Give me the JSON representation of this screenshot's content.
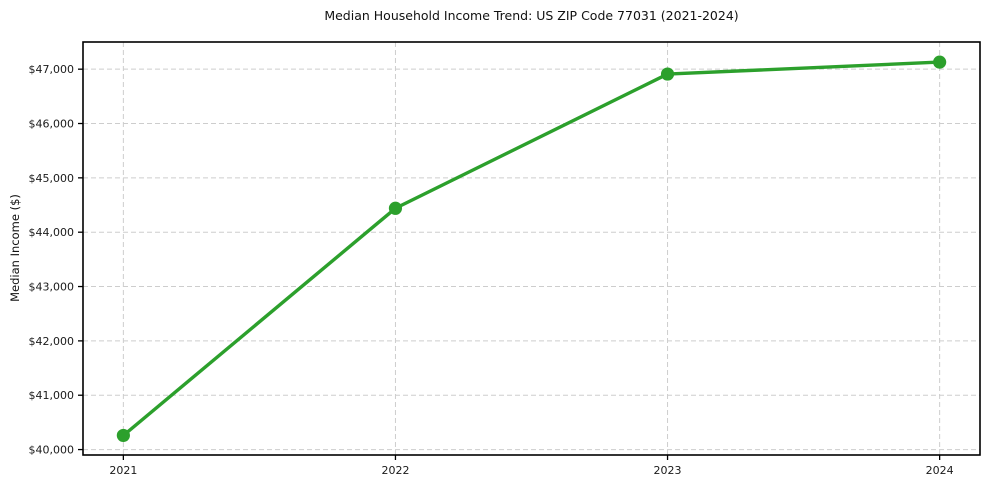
{
  "chart_data": {
    "type": "line",
    "title": "Median Household Income Trend: US ZIP Code 77031 (2021-2024)",
    "xlabel": "",
    "ylabel": "Median Income ($)",
    "categories": [
      "2021",
      "2022",
      "2023",
      "2024"
    ],
    "values": [
      40260,
      44440,
      46910,
      47130
    ],
    "ylim": [
      39900,
      47500
    ],
    "ytick_values": [
      40000,
      41000,
      42000,
      43000,
      44000,
      45000,
      46000,
      47000
    ],
    "ytick_labels": [
      "$40,000",
      "$41,000",
      "$42,000",
      "$43,000",
      "$44,000",
      "$45,000",
      "$46,000",
      "$47,000"
    ],
    "grid": "dashed-both-axes",
    "legend_position": "none",
    "marker": "circle",
    "colors": {
      "line": "#2ca02c",
      "marker": "#2ca02c",
      "grid": "#cdcdcd",
      "spine": "#000000",
      "tick_label": "#1a1a1a",
      "title": "#111111",
      "background": "#ffffff"
    }
  }
}
